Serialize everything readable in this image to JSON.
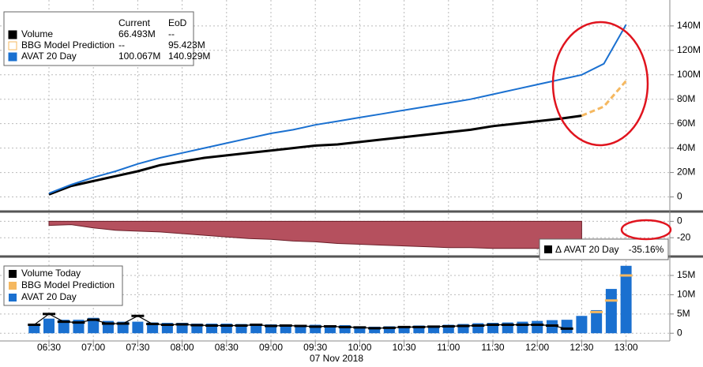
{
  "chart_data": [
    {
      "type": "line",
      "x": [
        "06:30",
        "06:45",
        "07:00",
        "07:15",
        "07:30",
        "07:45",
        "08:00",
        "08:15",
        "08:30",
        "08:45",
        "09:00",
        "09:15",
        "09:30",
        "09:45",
        "10:00",
        "10:15",
        "10:30",
        "10:45",
        "11:00",
        "11:15",
        "11:30",
        "11:45",
        "12:00",
        "12:15",
        "12:30",
        "12:45",
        "13:00"
      ],
      "series": [
        {
          "name": "Volume",
          "color": "#000000",
          "current": "66.493M",
          "eod": "--",
          "values": [
            2,
            9,
            13,
            17,
            21,
            26,
            29,
            32,
            34,
            36,
            38,
            40,
            42,
            43,
            45,
            47,
            49,
            51,
            53,
            55,
            58,
            60,
            62,
            64,
            66.5,
            null,
            null
          ]
        },
        {
          "name": "BBG Model Prediction",
          "color": "#f5b860",
          "dashed": true,
          "current": "--",
          "eod": "95.423M",
          "values": [
            null,
            null,
            null,
            null,
            null,
            null,
            null,
            null,
            null,
            null,
            null,
            null,
            null,
            null,
            null,
            null,
            null,
            null,
            null,
            null,
            null,
            null,
            null,
            null,
            66.5,
            74,
            95
          ]
        },
        {
          "name": "AVAT 20 Day",
          "color": "#1a70d0",
          "current": "100.067M",
          "eod": "140.929M",
          "values": [
            3,
            10,
            16,
            21,
            27,
            32,
            36,
            40,
            44,
            48,
            52,
            55,
            59,
            62,
            65,
            68,
            71,
            74,
            77,
            80,
            84,
            88,
            92,
            96,
            100,
            109,
            141
          ]
        }
      ],
      "legend_columns": [
        "Current",
        "EoD"
      ],
      "ylim": [
        -10,
        158
      ],
      "yticks": [
        0,
        {
          "value": 20,
          "label": "20M"
        },
        {
          "value": 40,
          "label": "40M"
        },
        {
          "value": 60,
          "label": "60M"
        },
        {
          "value": 80,
          "label": "80M"
        },
        {
          "value": 100,
          "label": "100M"
        },
        {
          "value": 120,
          "label": "120M"
        },
        {
          "value": 140,
          "label": "140M"
        }
      ],
      "grid": true
    },
    {
      "type": "area",
      "x": [
        "06:30",
        "06:45",
        "07:00",
        "07:15",
        "07:30",
        "07:45",
        "08:00",
        "08:15",
        "08:30",
        "08:45",
        "09:00",
        "09:15",
        "09:30",
        "09:45",
        "10:00",
        "10:15",
        "10:30",
        "10:45",
        "11:00",
        "11:15",
        "11:30",
        "11:45",
        "12:00",
        "12:15",
        "12:30",
        "12:45",
        "13:00"
      ],
      "series": [
        {
          "name": "Δ AVAT 20 Day",
          "color": "#b5505e",
          "values": [
            -5,
            -4,
            -8,
            -11,
            -12,
            -13,
            -15,
            -17,
            -19,
            -21,
            -22,
            -24,
            -25,
            -27,
            -28,
            -29,
            -30,
            -31,
            -32,
            -32,
            -33,
            -33,
            -33,
            -34,
            -35,
            null,
            null
          ],
          "current": {
            "value": -35.16,
            "label": "-35.16%"
          }
        }
      ],
      "ylim": [
        -40,
        10
      ],
      "yticks": [
        0,
        -20
      ],
      "grid": true
    },
    {
      "type": "bar",
      "x": [
        "06:20",
        "06:30",
        "06:40",
        "06:50",
        "07:00",
        "07:10",
        "07:20",
        "07:30",
        "07:40",
        "07:50",
        "08:00",
        "08:10",
        "08:20",
        "08:30",
        "08:40",
        "08:50",
        "09:00",
        "09:10",
        "09:20",
        "09:30",
        "09:40",
        "09:50",
        "10:00",
        "10:10",
        "10:20",
        "10:30",
        "10:40",
        "10:50",
        "11:00",
        "11:10",
        "11:20",
        "11:30",
        "11:40",
        "11:50",
        "12:00",
        "12:10",
        "12:20",
        "12:30",
        "12:40",
        "12:50",
        "13:00"
      ],
      "series": [
        {
          "name": "Volume Today",
          "color": "#000000",
          "style": "marker",
          "values": [
            2.2,
            5.0,
            3.0,
            2.8,
            3.5,
            2.5,
            2.5,
            4.5,
            2.4,
            2.2,
            2.3,
            2.1,
            2.0,
            2.0,
            2.0,
            2.2,
            1.9,
            2.0,
            1.9,
            1.7,
            1.8,
            1.6,
            1.5,
            1.3,
            1.4,
            1.6,
            1.6,
            1.7,
            1.8,
            1.9,
            2.0,
            2.2,
            2.2,
            2.2,
            2.2,
            2.0,
            1.2,
            null,
            null,
            null,
            null
          ]
        },
        {
          "name": "BBG Model Prediction",
          "color": "#f5b860",
          "style": "marker",
          "values": [
            null,
            null,
            null,
            null,
            null,
            null,
            null,
            null,
            null,
            null,
            null,
            null,
            null,
            null,
            null,
            null,
            null,
            null,
            null,
            null,
            null,
            null,
            null,
            null,
            null,
            null,
            null,
            null,
            null,
            null,
            null,
            null,
            null,
            null,
            null,
            null,
            null,
            null,
            5.5,
            8.5,
            15
          ]
        },
        {
          "name": "AVAT 20 Day",
          "color": "#1a70d0",
          "style": "bar",
          "values": [
            2.5,
            3.8,
            3.5,
            3.5,
            4,
            3.2,
            3,
            3,
            2.8,
            2.7,
            2.7,
            2.5,
            2.5,
            2.5,
            2.4,
            2.4,
            2.3,
            2.3,
            2.2,
            2.2,
            2.1,
            2.1,
            1.8,
            1.7,
            1.8,
            1.8,
            2.0,
            2.0,
            2.2,
            2.4,
            2.6,
            2.7,
            2.8,
            3.0,
            3.2,
            3.4,
            3.5,
            4.5,
            6,
            11.5,
            17.5
          ]
        }
      ],
      "ylim": [
        -2,
        19.3
      ],
      "yticks": [
        0,
        {
          "value": 5,
          "label": "5M"
        },
        {
          "value": 10,
          "label": "10M"
        },
        {
          "value": 15,
          "label": "15M"
        }
      ],
      "xticks": [
        "06:30",
        "07:00",
        "07:30",
        "08:00",
        "08:30",
        "09:00",
        "09:30",
        "10:00",
        "10:30",
        "11:00",
        "11:30",
        "12:00",
        "12:30",
        "13:00"
      ],
      "xlabel": "07 Nov 2018",
      "grid": true
    }
  ]
}
